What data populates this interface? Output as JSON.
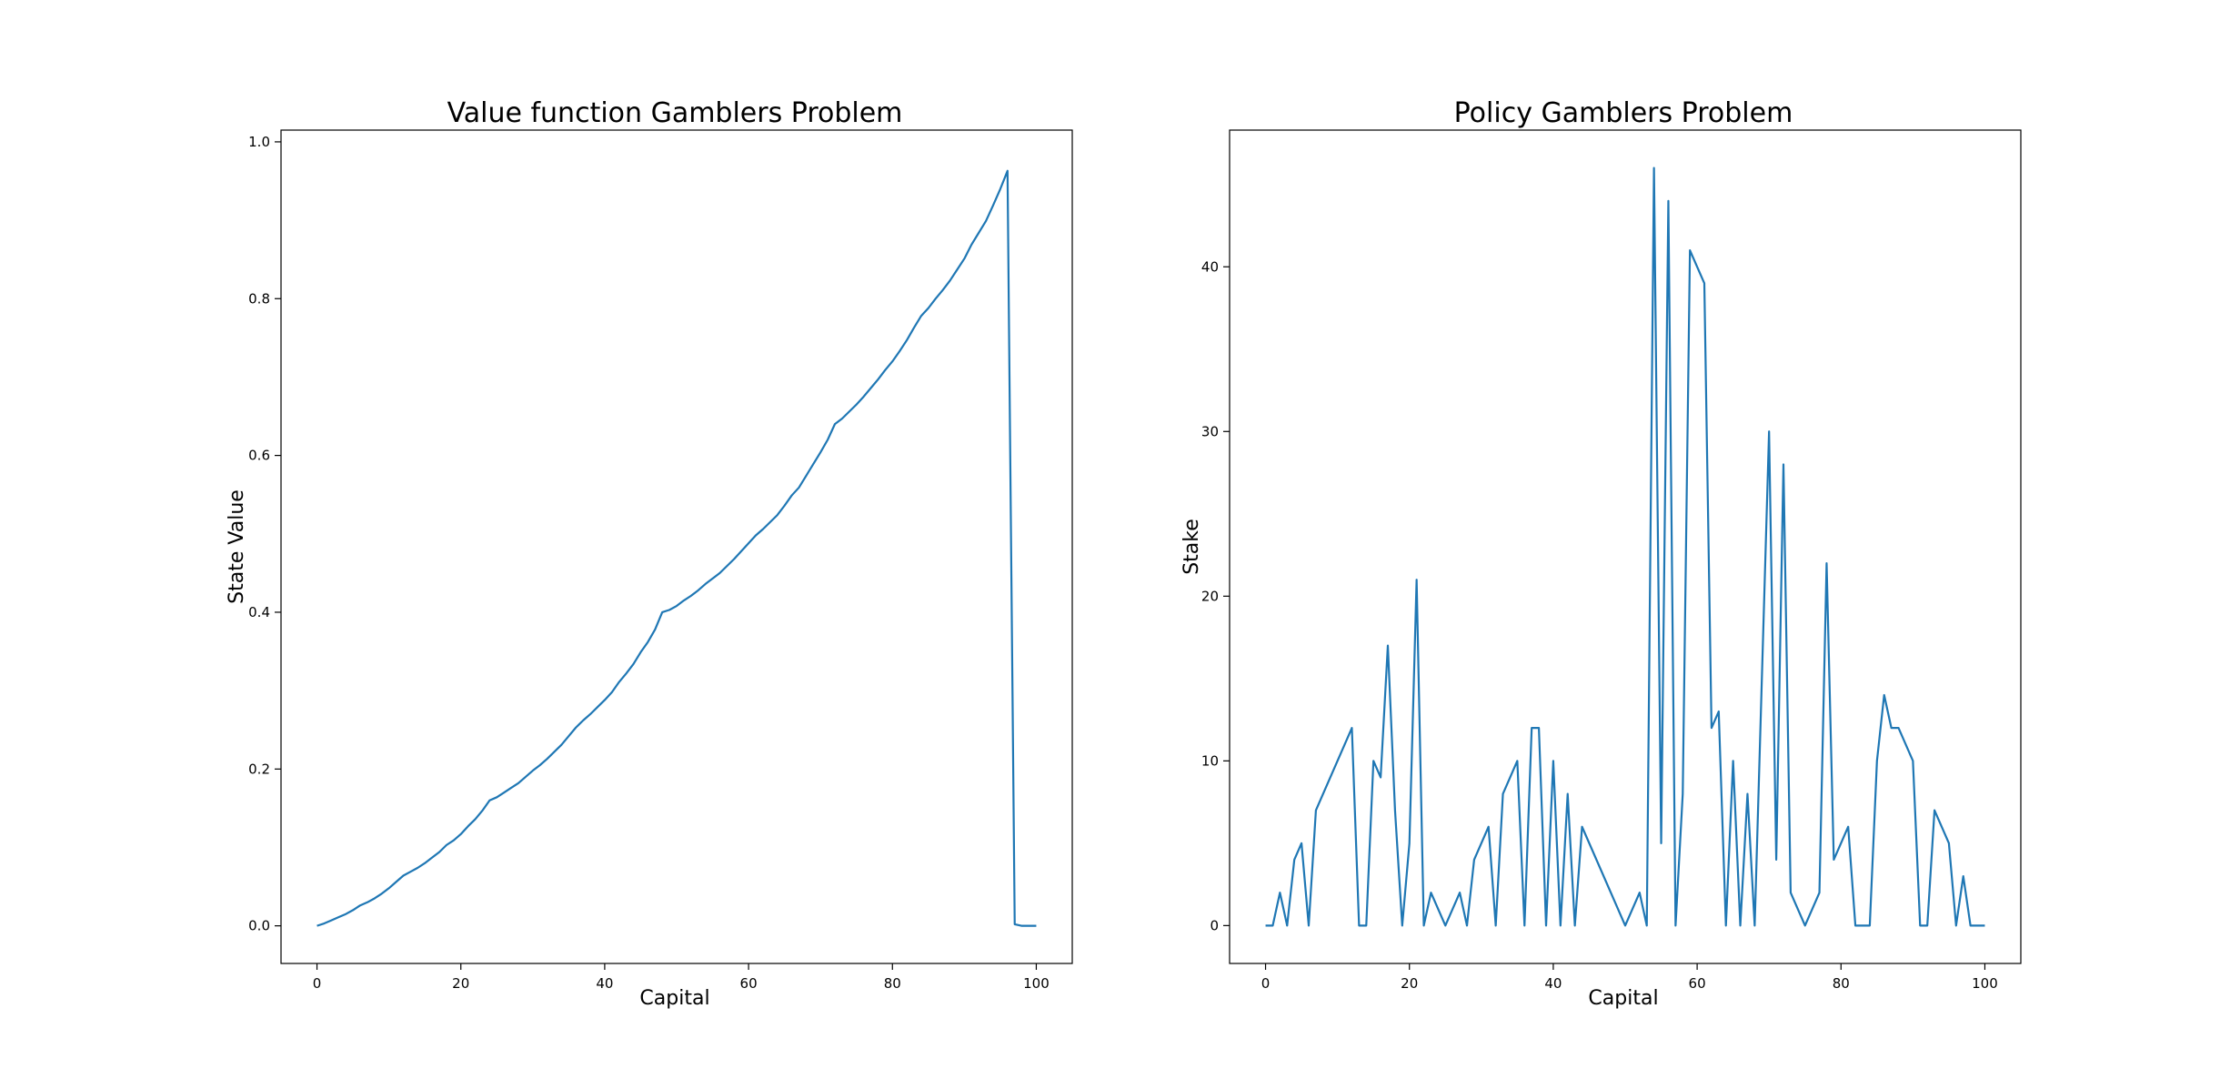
{
  "colors": {
    "series": "#1f77b4",
    "axes": "#000000",
    "background": "#ffffff"
  },
  "chart_data": [
    {
      "type": "line",
      "title": "Value function Gamblers Problem",
      "xlabel": "Capital",
      "ylabel": "State Value",
      "xlim": [
        -5,
        105
      ],
      "ylim": [
        -0.048,
        1.015
      ],
      "xticks": [
        0,
        20,
        40,
        60,
        80,
        100
      ],
      "xtick_labels": [
        "0",
        "20",
        "40",
        "60",
        "80",
        "100"
      ],
      "yticks": [
        0.0,
        0.2,
        0.4,
        0.6,
        0.8,
        1.0
      ],
      "ytick_labels": [
        "0.0",
        "0.2",
        "0.4",
        "0.6",
        "0.8",
        "1.0"
      ],
      "series": [
        {
          "x": [
            0,
            1,
            2,
            3,
            4,
            5,
            6,
            7,
            8,
            9,
            10,
            11,
            12,
            13,
            14,
            15,
            16,
            17,
            18,
            19,
            20,
            21,
            22,
            23,
            24,
            25,
            26,
            27,
            28,
            29,
            30,
            31,
            32,
            33,
            34,
            35,
            36,
            37,
            38,
            39,
            40,
            41,
            42,
            43,
            44,
            45,
            46,
            47,
            48,
            49,
            50,
            51,
            52,
            53,
            54,
            55,
            56,
            57,
            58,
            59,
            60,
            61,
            62,
            63,
            64,
            65,
            66,
            67,
            68,
            69,
            70,
            71,
            72,
            73,
            74,
            75,
            76,
            77,
            78,
            79,
            80,
            81,
            82,
            83,
            84,
            85,
            86,
            87,
            88,
            89,
            90,
            91,
            92,
            93,
            94,
            95,
            96,
            97,
            98,
            99,
            100
          ],
          "y": [
            0,
            0.003,
            0.007,
            0.011,
            0.015,
            0.02,
            0.026,
            0.03,
            0.035,
            0.041,
            0.048,
            0.056,
            0.064,
            0.069,
            0.074,
            0.08,
            0.087,
            0.094,
            0.103,
            0.109,
            0.117,
            0.127,
            0.136,
            0.147,
            0.16,
            0.164,
            0.17,
            0.176,
            0.182,
            0.19,
            0.198,
            0.205,
            0.213,
            0.222,
            0.231,
            0.242,
            0.253,
            0.262,
            0.27,
            0.279,
            0.288,
            0.298,
            0.311,
            0.322,
            0.334,
            0.349,
            0.362,
            0.378,
            0.4,
            0.403,
            0.408,
            0.415,
            0.421,
            0.428,
            0.436,
            0.443,
            0.45,
            0.459,
            0.468,
            0.478,
            0.488,
            0.498,
            0.506,
            0.515,
            0.524,
            0.536,
            0.549,
            0.559,
            0.574,
            0.589,
            0.604,
            0.62,
            0.64,
            0.647,
            0.656,
            0.665,
            0.675,
            0.686,
            0.697,
            0.709,
            0.72,
            0.733,
            0.747,
            0.763,
            0.778,
            0.788,
            0.8,
            0.811,
            0.823,
            0.837,
            0.851,
            0.869,
            0.884,
            0.899,
            0.919,
            0.94,
            0.963,
            0.002,
            0,
            0,
            0
          ]
        }
      ]
    },
    {
      "type": "line",
      "title": "Policy Gamblers Problem",
      "xlabel": "Capital",
      "ylabel": "Stake",
      "xlim": [
        -5,
        105
      ],
      "ylim": [
        -2.3,
        48.3
      ],
      "xticks": [
        0,
        20,
        40,
        60,
        80,
        100
      ],
      "xtick_labels": [
        "0",
        "20",
        "40",
        "60",
        "80",
        "100"
      ],
      "yticks": [
        0,
        10,
        20,
        30,
        40
      ],
      "ytick_labels": [
        "0",
        "10",
        "20",
        "30",
        "40"
      ],
      "series": [
        {
          "x": [
            0,
            1,
            2,
            3,
            4,
            5,
            6,
            7,
            12,
            13,
            14,
            15,
            16,
            17,
            18,
            19,
            20,
            21,
            22,
            23,
            25,
            27,
            28,
            29,
            31,
            32,
            33,
            35,
            36,
            37,
            38,
            39,
            40,
            41,
            42,
            43,
            44,
            50,
            52,
            53,
            54,
            55,
            56,
            57,
            58,
            59,
            61,
            62,
            63,
            64,
            65,
            66,
            67,
            68,
            70,
            71,
            72,
            73,
            75,
            77,
            78,
            79,
            81,
            82,
            83,
            84,
            85,
            86,
            87,
            88,
            90,
            91,
            92,
            93,
            95,
            96,
            97,
            98,
            100
          ],
          "y": [
            0,
            0,
            2,
            0,
            4,
            5,
            0,
            7,
            12,
            0,
            0,
            10,
            9,
            17,
            7,
            0,
            5,
            21,
            0,
            2,
            0,
            2,
            0,
            4,
            6,
            0,
            8,
            10,
            0,
            12,
            12,
            0,
            10,
            0,
            8,
            0,
            6,
            0,
            2,
            0,
            46,
            5,
            44,
            0,
            8,
            41,
            39,
            12,
            13,
            0,
            10,
            0,
            8,
            0,
            30,
            4,
            28,
            2,
            0,
            2,
            22,
            4,
            6,
            0,
            0,
            0,
            10,
            14,
            12,
            12,
            10,
            0,
            0,
            7,
            5,
            0,
            3,
            0,
            0
          ]
        }
      ]
    }
  ]
}
